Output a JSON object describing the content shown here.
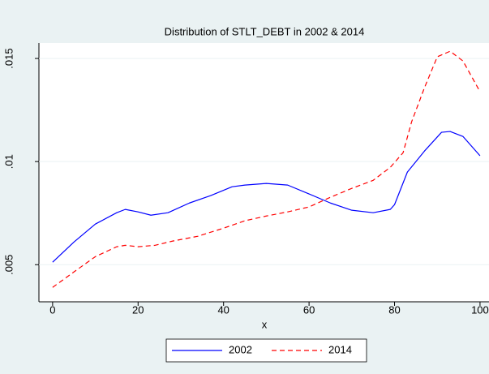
{
  "chart_data": {
    "type": "line",
    "title": "Distribution of STLT_DEBT in 2002 & 2014",
    "x_label": "x",
    "xlim": [
      -3.2,
      102.1
    ],
    "xticks": [
      0,
      20,
      40,
      60,
      80,
      100
    ],
    "ylim": [
      0.0032,
      0.01575
    ],
    "yticks": [
      {
        "value": 0.005,
        "label": ".005"
      },
      {
        "value": 0.01,
        "label": ".01"
      },
      {
        "value": 0.015,
        "label": ".015"
      }
    ],
    "grid": true,
    "legend": "bottom",
    "series": [
      {
        "name": "2002",
        "color": "#0000ff",
        "dash": "solid",
        "x": [
          0,
          5,
          10,
          15,
          17,
          20,
          23,
          27,
          32,
          37,
          42,
          45,
          50,
          55,
          60,
          65,
          70,
          75,
          79,
          80,
          83,
          87,
          91,
          93,
          96,
          100
        ],
        "values": [
          0.00512,
          0.0061,
          0.00697,
          0.00752,
          0.00768,
          0.00756,
          0.0074,
          0.00752,
          0.00799,
          0.00835,
          0.00878,
          0.00886,
          0.00894,
          0.00886,
          0.00843,
          0.00799,
          0.00764,
          0.00752,
          0.00768,
          0.00791,
          0.00949,
          0.01051,
          0.01142,
          0.01146,
          0.01122,
          0.01028
        ]
      },
      {
        "name": "2014",
        "color": "#ff0000",
        "dash": "dashed",
        "x": [
          0,
          5,
          10,
          15,
          17,
          20,
          24,
          28,
          34,
          40,
          45,
          50,
          55,
          60,
          65,
          70,
          75,
          79,
          82,
          84,
          87,
          90,
          93,
          96,
          100
        ],
        "values": [
          0.0039,
          0.00465,
          0.00539,
          0.00587,
          0.00594,
          0.00587,
          0.00594,
          0.00614,
          0.00638,
          0.00677,
          0.00713,
          0.00736,
          0.00756,
          0.0078,
          0.00827,
          0.0087,
          0.00909,
          0.00972,
          0.01043,
          0.01193,
          0.01358,
          0.01508,
          0.01535,
          0.01488,
          0.01339
        ]
      }
    ]
  }
}
